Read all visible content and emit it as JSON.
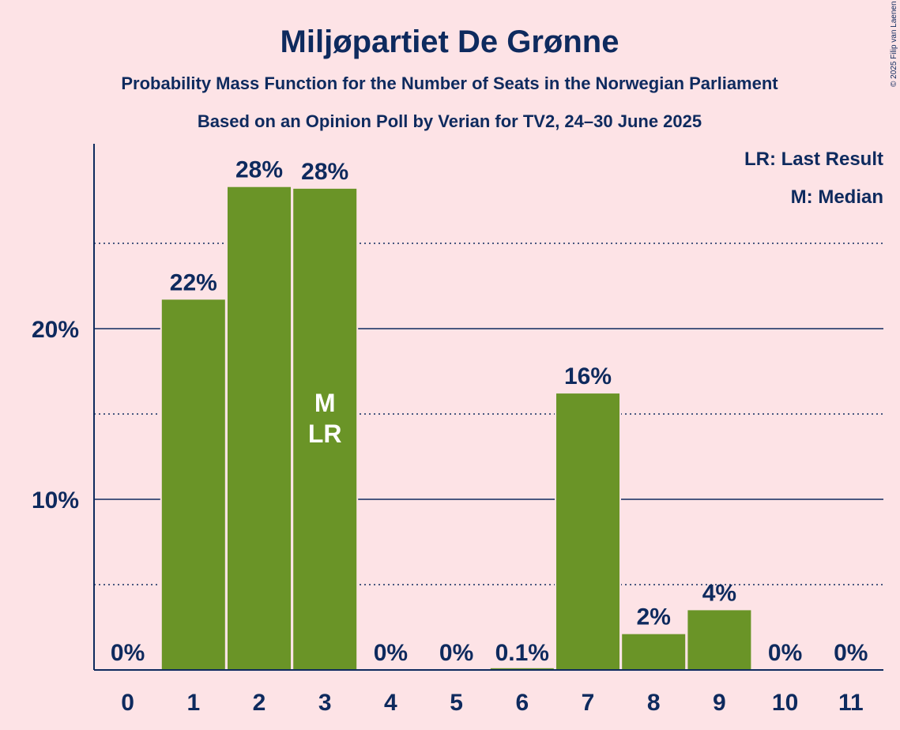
{
  "chart_data": {
    "type": "bar",
    "title": "Miljøpartiet De Grønne",
    "subtitle": "Probability Mass Function for the Number of Seats in the Norwegian Parliament",
    "source": "Based on an Opinion Poll by Verian for TV2, 24–30 June 2025",
    "copyright": "© 2025 Filip van Laenen",
    "xlabel": "",
    "ylabel": "",
    "ylim": [
      0,
      30
    ],
    "y_major_ticks": [
      10,
      20
    ],
    "y_major_tick_labels": [
      "10%",
      "20%"
    ],
    "y_minor_gridlines": [
      5,
      15,
      25
    ],
    "categories": [
      "0",
      "1",
      "2",
      "3",
      "4",
      "5",
      "6",
      "7",
      "8",
      "9",
      "10",
      "11"
    ],
    "values": [
      0,
      21.7,
      28.3,
      28.2,
      0,
      0,
      0.1,
      16.2,
      2.1,
      3.5,
      0,
      0
    ],
    "data_labels": [
      "0%",
      "22%",
      "28%",
      "28%",
      "0%",
      "0%",
      "0.1%",
      "16%",
      "2%",
      "4%",
      "0%",
      "0%"
    ],
    "bar_color": "#6a9427",
    "text_color": "#0e2a5e",
    "background_color": "#fde3e6",
    "median_seat": "3",
    "last_result_seat": "3",
    "median_marker": "M",
    "last_result_marker": "LR",
    "legend": [
      "LR: Last Result",
      "M: Median"
    ]
  }
}
